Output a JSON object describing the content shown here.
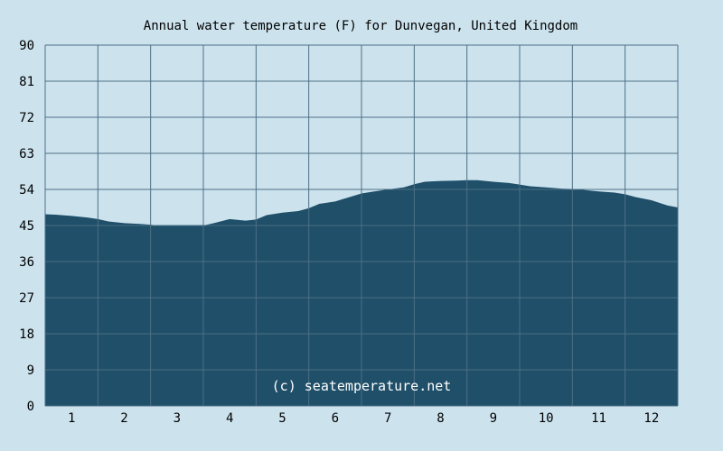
{
  "chart_data": {
    "type": "area",
    "title": "Annual water temperature (F) for Dunvegan, United Kingdom",
    "xlabel": "",
    "ylabel": "",
    "ylim": [
      0,
      90
    ],
    "xlim": [
      0.5,
      12.5
    ],
    "y_ticks": [
      "0",
      "9",
      "18",
      "27",
      "36",
      "45",
      "54",
      "63",
      "72",
      "81",
      "90"
    ],
    "x_ticks": [
      "1",
      "2",
      "3",
      "4",
      "5",
      "6",
      "7",
      "8",
      "9",
      "10",
      "11",
      "12"
    ],
    "grid": true,
    "watermark": "(c) seatemperature.net",
    "colors": {
      "background": "#cce3ee",
      "plot_background": "#cce3ee",
      "fill": "#1f4f69",
      "grid": "#4e6f85",
      "text": "#000000"
    },
    "series": [
      {
        "x": [
          0.5,
          0.7,
          1.0,
          1.3,
          1.5,
          1.7,
          2.0,
          2.3,
          2.5,
          2.7,
          3.0,
          3.3,
          3.5,
          3.7,
          4.0,
          4.3,
          4.5,
          4.7,
          5.0,
          5.3,
          5.5,
          5.7,
          6.0,
          6.3,
          6.5,
          6.7,
          7.0,
          7.3,
          7.5,
          7.7,
          8.0,
          8.3,
          8.5,
          8.7,
          9.0,
          9.3,
          9.5,
          9.7,
          10.0,
          10.3,
          10.5,
          10.7,
          11.0,
          11.3,
          11.5,
          11.7,
          12.0,
          12.3,
          12.5
        ],
        "values": [
          47.8,
          47.7,
          47.4,
          47.0,
          46.6,
          46.0,
          45.6,
          45.4,
          45.2,
          44.9,
          44.9,
          44.9,
          45.0,
          45.6,
          46.6,
          46.2,
          46.5,
          47.6,
          48.2,
          48.6,
          49.3,
          50.4,
          51.0,
          52.2,
          53.0,
          53.4,
          54.0,
          54.5,
          55.3,
          55.9,
          56.1,
          56.2,
          56.3,
          56.3,
          55.9,
          55.6,
          55.2,
          54.8,
          54.5,
          54.2,
          54.1,
          53.9,
          53.5,
          53.2,
          52.8,
          52.1,
          51.3,
          50.0,
          49.5
        ]
      }
    ]
  }
}
